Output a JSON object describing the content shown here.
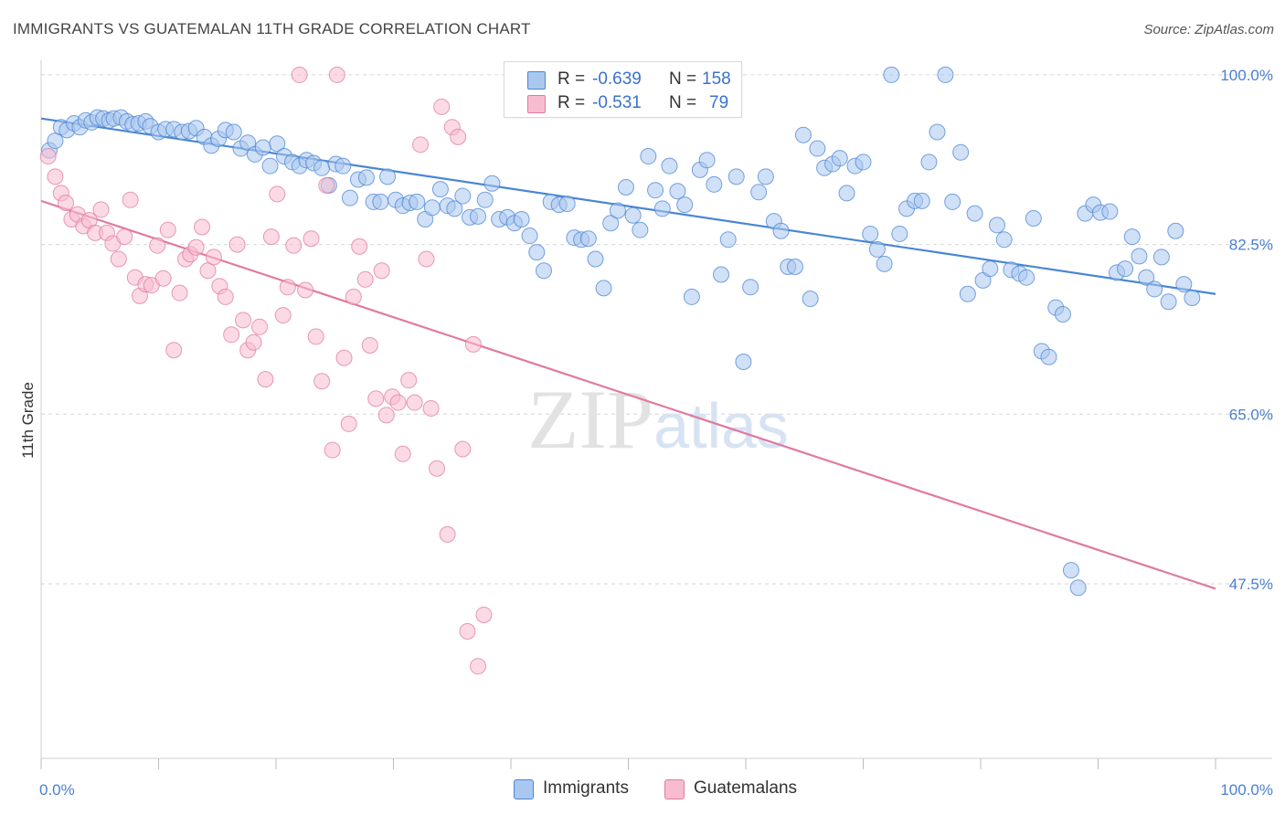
{
  "title": "IMMIGRANTS VS GUATEMALAN 11TH GRADE CORRELATION CHART",
  "source": "Source: ZipAtlas.com",
  "watermark": "ZIPatlas",
  "stats": [
    {
      "r_label": "R =",
      "r_value": "-0.639",
      "n_label": "N =",
      "n_value": "158",
      "color": "#a9c7ef",
      "border": "#4a86d4"
    },
    {
      "r_label": "R =",
      "r_value": "-0.531",
      "n_label": "N =",
      "n_value": "79",
      "color": "#f7bcd0",
      "border": "#e07aa0"
    }
  ],
  "legend": [
    {
      "label": "Immigrants",
      "color": "#a9c7ef",
      "border": "#4a86d4"
    },
    {
      "label": "Guatemalans",
      "color": "#f7bcd0",
      "border": "#e07aa0"
    }
  ],
  "chart_data": {
    "type": "scatter",
    "title": "IMMIGRANTS VS GUATEMALAN 11TH GRADE CORRELATION CHART",
    "xlabel": "",
    "ylabel": "11th Grade",
    "xlim": [
      0,
      100
    ],
    "ylim": [
      29.5,
      101.5
    ],
    "x_tick_labels": [
      "0.0%",
      "100.0%"
    ],
    "y_ticks": [
      47.5,
      65.0,
      82.5,
      100.0
    ],
    "y_tick_labels": [
      "47.5%",
      "65.0%",
      "82.5%",
      "100.0%"
    ],
    "grid": true,
    "legend_position": "bottom-center",
    "series": [
      {
        "name": "Immigrants",
        "color": "#4a86d4",
        "fill": "#a9c7ef",
        "trend": {
          "x": [
            0,
            100
          ],
          "y": [
            95.5,
            77.4
          ]
        },
        "points": [
          [
            0.7,
            92.2
          ],
          [
            1.2,
            93.2
          ],
          [
            1.7,
            94.6
          ],
          [
            2.2,
            94.3
          ],
          [
            2.8,
            95.0
          ],
          [
            3.3,
            94.6
          ],
          [
            3.8,
            95.3
          ],
          [
            4.3,
            95.1
          ],
          [
            4.8,
            95.6
          ],
          [
            5.3,
            95.5
          ],
          [
            5.8,
            95.3
          ],
          [
            6.2,
            95.5
          ],
          [
            6.8,
            95.6
          ],
          [
            7.3,
            95.2
          ],
          [
            7.8,
            94.9
          ],
          [
            8.3,
            95.0
          ],
          [
            8.9,
            95.2
          ],
          [
            9.3,
            94.7
          ],
          [
            10.0,
            94.1
          ],
          [
            10.6,
            94.4
          ],
          [
            11.3,
            94.4
          ],
          [
            12.0,
            94.1
          ],
          [
            12.6,
            94.2
          ],
          [
            13.2,
            94.5
          ],
          [
            13.9,
            93.6
          ],
          [
            14.5,
            92.7
          ],
          [
            15.1,
            93.4
          ],
          [
            15.7,
            94.3
          ],
          [
            16.4,
            94.1
          ],
          [
            17.0,
            92.4
          ],
          [
            17.6,
            93.0
          ],
          [
            18.2,
            91.8
          ],
          [
            18.9,
            92.5
          ],
          [
            19.5,
            90.6
          ],
          [
            20.1,
            92.9
          ],
          [
            20.7,
            91.6
          ],
          [
            21.4,
            91.0
          ],
          [
            22.0,
            90.6
          ],
          [
            22.6,
            91.2
          ],
          [
            23.2,
            90.9
          ],
          [
            23.9,
            90.4
          ],
          [
            24.5,
            88.6
          ],
          [
            25.1,
            90.8
          ],
          [
            25.7,
            90.6
          ],
          [
            26.3,
            87.3
          ],
          [
            27.0,
            89.2
          ],
          [
            27.7,
            89.4
          ],
          [
            28.3,
            86.9
          ],
          [
            28.9,
            86.9
          ],
          [
            29.5,
            89.5
          ],
          [
            30.2,
            87.1
          ],
          [
            30.8,
            86.5
          ],
          [
            31.4,
            86.8
          ],
          [
            32.0,
            86.9
          ],
          [
            32.7,
            85.1
          ],
          [
            33.3,
            86.3
          ],
          [
            34.0,
            88.2
          ],
          [
            34.6,
            86.5
          ],
          [
            35.2,
            86.2
          ],
          [
            35.9,
            87.5
          ],
          [
            36.5,
            85.3
          ],
          [
            37.2,
            85.4
          ],
          [
            37.8,
            87.1
          ],
          [
            38.4,
            88.8
          ],
          [
            39.0,
            85.1
          ],
          [
            39.7,
            85.3
          ],
          [
            40.3,
            84.7
          ],
          [
            40.9,
            85.1
          ],
          [
            41.6,
            83.4
          ],
          [
            42.2,
            81.7
          ],
          [
            42.8,
            79.8
          ],
          [
            43.4,
            86.9
          ],
          [
            44.1,
            86.6
          ],
          [
            44.8,
            86.7
          ],
          [
            45.4,
            83.2
          ],
          [
            46.0,
            83.0
          ],
          [
            46.6,
            83.1
          ],
          [
            47.2,
            81.0
          ],
          [
            47.9,
            78.0
          ],
          [
            48.5,
            84.7
          ],
          [
            49.1,
            86.0
          ],
          [
            49.8,
            88.4
          ],
          [
            50.4,
            85.5
          ],
          [
            51.0,
            84.0
          ],
          [
            51.7,
            91.6
          ],
          [
            52.3,
            88.1
          ],
          [
            52.9,
            86.2
          ],
          [
            53.5,
            90.6
          ],
          [
            54.2,
            88.0
          ],
          [
            54.8,
            86.6
          ],
          [
            55.4,
            77.1
          ],
          [
            56.1,
            90.2
          ],
          [
            56.7,
            91.2
          ],
          [
            57.3,
            88.7
          ],
          [
            57.9,
            79.4
          ],
          [
            58.5,
            83.0
          ],
          [
            59.2,
            89.5
          ],
          [
            59.8,
            70.4
          ],
          [
            60.4,
            78.1
          ],
          [
            61.1,
            87.9
          ],
          [
            61.7,
            89.5
          ],
          [
            62.4,
            84.9
          ],
          [
            63.0,
            83.9
          ],
          [
            63.6,
            80.2
          ],
          [
            64.2,
            80.2
          ],
          [
            64.9,
            93.8
          ],
          [
            65.5,
            76.9
          ],
          [
            66.1,
            92.4
          ],
          [
            66.7,
            90.4
          ],
          [
            67.4,
            90.8
          ],
          [
            68.0,
            91.4
          ],
          [
            68.6,
            87.8
          ],
          [
            69.3,
            90.6
          ],
          [
            70.0,
            91.0
          ],
          [
            70.6,
            83.6
          ],
          [
            71.2,
            82.0
          ],
          [
            71.8,
            80.5
          ],
          [
            72.4,
            100.0
          ],
          [
            73.1,
            83.6
          ],
          [
            73.7,
            86.2
          ],
          [
            74.4,
            87.0
          ],
          [
            75.0,
            87.0
          ],
          [
            75.6,
            91.0
          ],
          [
            76.3,
            94.1
          ],
          [
            77.0,
            100.0
          ],
          [
            77.6,
            86.9
          ],
          [
            78.3,
            92.0
          ],
          [
            78.9,
            77.4
          ],
          [
            79.5,
            85.7
          ],
          [
            80.2,
            78.8
          ],
          [
            80.8,
            80.0
          ],
          [
            81.4,
            84.5
          ],
          [
            82.0,
            83.0
          ],
          [
            82.6,
            79.9
          ],
          [
            83.3,
            79.5
          ],
          [
            83.9,
            79.1
          ],
          [
            84.5,
            85.2
          ],
          [
            85.2,
            71.5
          ],
          [
            85.8,
            70.9
          ],
          [
            86.4,
            76.0
          ],
          [
            87.0,
            75.3
          ],
          [
            87.7,
            48.9
          ],
          [
            88.3,
            47.1
          ],
          [
            88.9,
            85.7
          ],
          [
            89.6,
            86.6
          ],
          [
            90.2,
            85.8
          ],
          [
            91.0,
            85.9
          ],
          [
            91.6,
            79.6
          ],
          [
            92.3,
            80.0
          ],
          [
            92.9,
            83.3
          ],
          [
            93.5,
            81.3
          ],
          [
            94.1,
            79.1
          ],
          [
            94.8,
            77.9
          ],
          [
            95.4,
            81.2
          ],
          [
            96.0,
            76.6
          ],
          [
            96.6,
            83.9
          ],
          [
            97.3,
            78.4
          ],
          [
            98.0,
            77.0
          ]
        ]
      },
      {
        "name": "Guatemalans",
        "color": "#e07aa0",
        "fill": "#f7bcd0",
        "trend": {
          "x": [
            0,
            100
          ],
          "y": [
            87.0,
            47.0
          ]
        },
        "points": [
          [
            0.6,
            91.6
          ],
          [
            1.2,
            89.5
          ],
          [
            1.7,
            87.8
          ],
          [
            2.1,
            86.8
          ],
          [
            2.6,
            85.1
          ],
          [
            3.1,
            85.6
          ],
          [
            3.6,
            84.4
          ],
          [
            4.1,
            85.0
          ],
          [
            4.6,
            83.7
          ],
          [
            5.1,
            86.1
          ],
          [
            5.6,
            83.7
          ],
          [
            6.1,
            82.6
          ],
          [
            6.6,
            81.0
          ],
          [
            7.1,
            83.3
          ],
          [
            7.6,
            87.1
          ],
          [
            8.0,
            79.1
          ],
          [
            8.4,
            77.2
          ],
          [
            8.9,
            78.4
          ],
          [
            9.4,
            78.3
          ],
          [
            9.9,
            82.4
          ],
          [
            10.4,
            79.0
          ],
          [
            10.8,
            84.0
          ],
          [
            11.3,
            71.6
          ],
          [
            11.8,
            77.5
          ],
          [
            12.3,
            81.0
          ],
          [
            12.7,
            81.5
          ],
          [
            13.2,
            82.2
          ],
          [
            13.7,
            84.3
          ],
          [
            14.2,
            79.8
          ],
          [
            14.7,
            81.2
          ],
          [
            15.2,
            78.2
          ],
          [
            15.7,
            77.1
          ],
          [
            16.2,
            73.2
          ],
          [
            16.7,
            82.5
          ],
          [
            17.2,
            74.7
          ],
          [
            17.6,
            71.6
          ],
          [
            18.1,
            72.4
          ],
          [
            18.6,
            74.0
          ],
          [
            19.1,
            68.6
          ],
          [
            19.6,
            83.3
          ],
          [
            20.1,
            87.7
          ],
          [
            20.6,
            75.2
          ],
          [
            21.0,
            78.1
          ],
          [
            21.5,
            82.4
          ],
          [
            22.0,
            100.0
          ],
          [
            22.5,
            77.8
          ],
          [
            23.0,
            83.1
          ],
          [
            23.4,
            73.0
          ],
          [
            23.9,
            68.4
          ],
          [
            24.3,
            88.6
          ],
          [
            24.8,
            61.3
          ],
          [
            25.2,
            100.0
          ],
          [
            25.8,
            70.8
          ],
          [
            26.2,
            64.0
          ],
          [
            26.6,
            77.1
          ],
          [
            27.1,
            82.3
          ],
          [
            27.6,
            78.9
          ],
          [
            28.0,
            72.1
          ],
          [
            28.5,
            66.6
          ],
          [
            29.0,
            79.8
          ],
          [
            29.4,
            64.9
          ],
          [
            29.9,
            66.8
          ],
          [
            30.4,
            66.2
          ],
          [
            30.8,
            60.9
          ],
          [
            31.3,
            68.5
          ],
          [
            31.8,
            66.2
          ],
          [
            32.3,
            92.8
          ],
          [
            32.8,
            81.0
          ],
          [
            33.2,
            65.6
          ],
          [
            33.7,
            59.4
          ],
          [
            34.1,
            96.7
          ],
          [
            34.6,
            52.6
          ],
          [
            35.0,
            94.6
          ],
          [
            35.5,
            93.6
          ],
          [
            35.9,
            61.4
          ],
          [
            36.3,
            42.6
          ],
          [
            36.8,
            72.2
          ],
          [
            37.2,
            39.0
          ],
          [
            37.7,
            44.3
          ]
        ]
      }
    ]
  }
}
